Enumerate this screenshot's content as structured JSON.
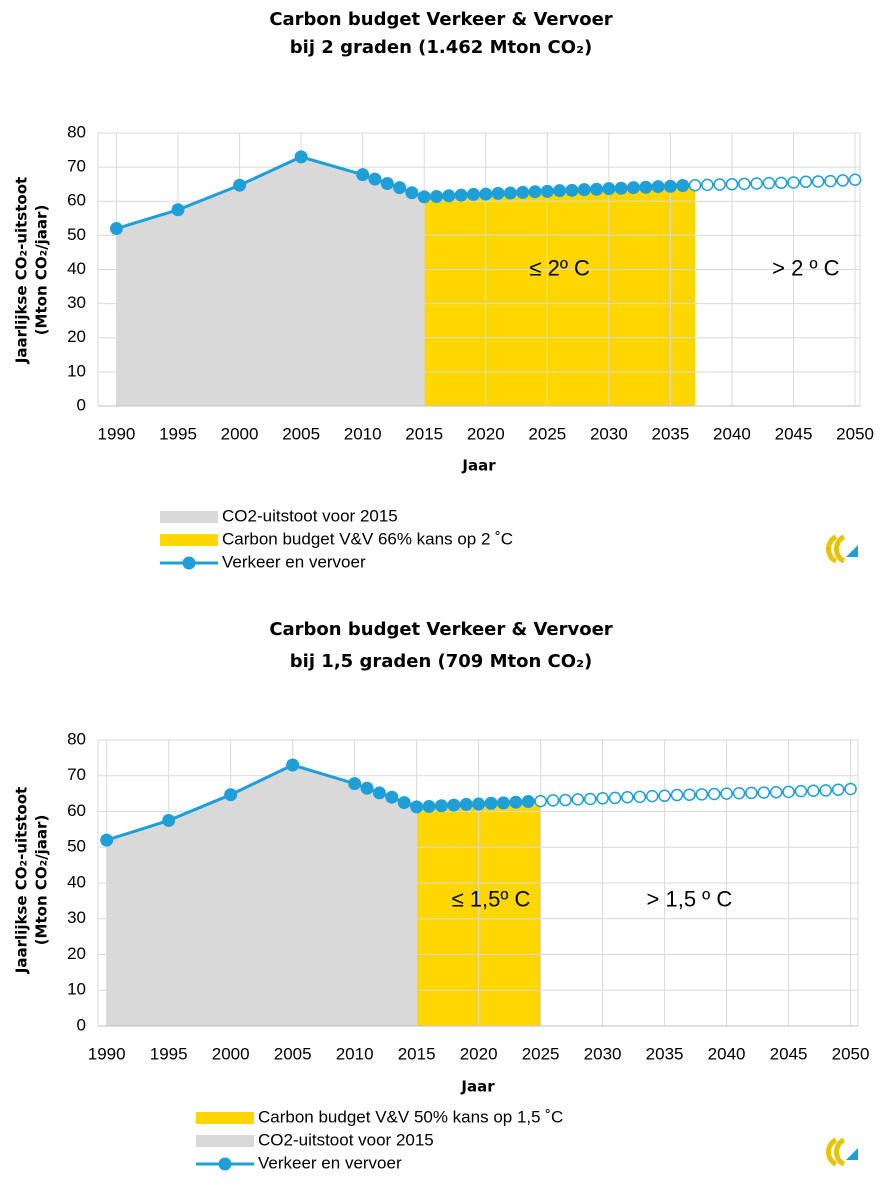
{
  "chart_data": [
    {
      "type": "line",
      "title": "Carbon budget Verkeer & Vervoer",
      "subtitle": "bij 2 graden (1.462 Mton CO₂)",
      "ylabel": [
        "Jaarlijkse CO₂-uitstoot",
        "(Mton CO₂/jaar)"
      ],
      "xlabel": "Jaar",
      "x": [
        1990,
        1995,
        2000,
        2005,
        2010,
        2011,
        2012,
        2013,
        2014,
        2015,
        2016,
        2017,
        2018,
        2019,
        2020,
        2021,
        2022,
        2023,
        2024,
        2025,
        2026,
        2027,
        2028,
        2029,
        2030,
        2031,
        2032,
        2033,
        2034,
        2035,
        2036,
        2037,
        2038,
        2039,
        2040,
        2041,
        2042,
        2043,
        2044,
        2045,
        2046,
        2047,
        2048,
        2049,
        2050
      ],
      "series": [
        {
          "name": "Verkeer en vervoer",
          "color": "#1e9fd8",
          "values": [
            52,
            57.5,
            64.7,
            73,
            67.8,
            66.5,
            65.2,
            64,
            62.5,
            61.3,
            61.4,
            61.6,
            61.8,
            62,
            62.1,
            62.3,
            62.4,
            62.6,
            62.8,
            62.9,
            63.1,
            63.2,
            63.4,
            63.5,
            63.7,
            63.8,
            64,
            64.1,
            64.3,
            64.4,
            64.6,
            64.7,
            64.8,
            64.9,
            65,
            65.1,
            65.2,
            65.3,
            65.4,
            65.5,
            65.7,
            65.8,
            65.9,
            66.1,
            66.3
          ]
        }
      ],
      "areas": [
        {
          "name": "CO2-uitstoot voor 2015",
          "color": "#d9d9d9",
          "x_range": [
            1990,
            2015
          ]
        },
        {
          "name": "Carbon budget V&V 66% kans op 2 ˚C",
          "color": "#ffd700",
          "x_range": [
            2015,
            2037
          ]
        }
      ],
      "annotations": [
        {
          "text": "≤ 2º C"
        },
        {
          "text": "> 2 º C"
        }
      ],
      "xlim": [
        1988.5,
        2050.4
      ],
      "ylim": [
        0,
        80
      ],
      "xticks": [
        1990,
        1995,
        2000,
        2005,
        2010,
        2015,
        2020,
        2025,
        2030,
        2035,
        2040,
        2045,
        2050
      ],
      "yticks": [
        0,
        10,
        20,
        30,
        40,
        50,
        60,
        70,
        80
      ],
      "grid": true
    },
    {
      "type": "line",
      "title": "Carbon budget Verkeer & Vervoer",
      "subtitle": "bij 1,5 graden (709 Mton CO₂)",
      "ylabel": [
        "Jaarlijkse CO₂-uitstoot",
        "(Mton CO₂/jaar)"
      ],
      "xlabel": "Jaar",
      "x": [
        1990,
        1995,
        2000,
        2005,
        2010,
        2011,
        2012,
        2013,
        2014,
        2015,
        2016,
        2017,
        2018,
        2019,
        2020,
        2021,
        2022,
        2023,
        2024,
        2025,
        2026,
        2027,
        2028,
        2029,
        2030,
        2031,
        2032,
        2033,
        2034,
        2035,
        2036,
        2037,
        2038,
        2039,
        2040,
        2041,
        2042,
        2043,
        2044,
        2045,
        2046,
        2047,
        2048,
        2049,
        2050
      ],
      "series": [
        {
          "name": "Verkeer en vervoer",
          "color": "#1e9fd8",
          "values": [
            52,
            57.5,
            64.7,
            73,
            67.8,
            66.5,
            65.2,
            64,
            62.5,
            61.3,
            61.4,
            61.6,
            61.8,
            62,
            62.1,
            62.3,
            62.4,
            62.6,
            62.8,
            62.9,
            63.1,
            63.2,
            63.4,
            63.5,
            63.7,
            63.8,
            64,
            64.1,
            64.3,
            64.4,
            64.6,
            64.7,
            64.8,
            64.9,
            65,
            65.1,
            65.2,
            65.3,
            65.4,
            65.5,
            65.7,
            65.8,
            65.9,
            66.1,
            66.3
          ]
        }
      ],
      "areas": [
        {
          "name": "Carbon budget V&V 50% kans op 1,5 ˚C",
          "color": "#ffd700",
          "x_range": [
            2015,
            2025
          ]
        },
        {
          "name": "CO2-uitstoot voor 2015",
          "color": "#d9d9d9",
          "x_range": [
            1990,
            2015
          ]
        }
      ],
      "annotations": [
        {
          "text": "≤ 1,5º C"
        },
        {
          "text": "> 1,5 º C"
        }
      ],
      "xlim": [
        1989.3,
        2050.6
      ],
      "ylim": [
        0,
        80
      ],
      "xticks": [
        1990,
        1995,
        2000,
        2005,
        2010,
        2015,
        2020,
        2025,
        2030,
        2035,
        2040,
        2045,
        2050
      ],
      "yticks": [
        0,
        10,
        20,
        30,
        40,
        50,
        60,
        70,
        80
      ],
      "grid": true
    }
  ]
}
